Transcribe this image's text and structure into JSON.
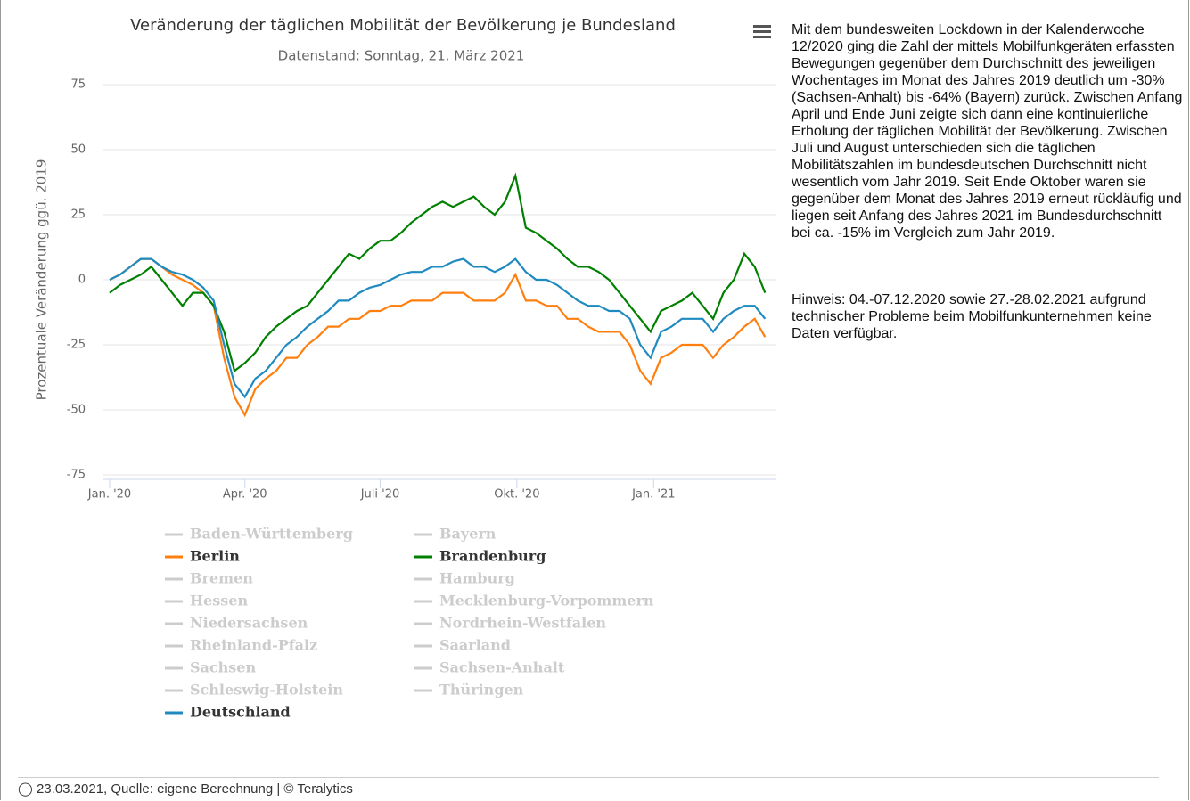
{
  "chart_data": {
    "type": "line",
    "title": "Veränderung der täglichen Mobilität der Bevölkerung je Bundesland",
    "subtitle": "Datenstand: Sonntag, 21. März 2021",
    "y_label": "Prozentuale Veränderung ggü. 2019",
    "ylim": [
      -75,
      75
    ],
    "yticks": [
      -75,
      -50,
      -25,
      0,
      25,
      50,
      75
    ],
    "grid": true,
    "xlim": [
      "2020-01-01",
      "2021-03-21"
    ],
    "xticks": [
      {
        "value": "2020-01-01",
        "label": "Jan. '20"
      },
      {
        "value": "2020-04-01",
        "label": "Apr. '20"
      },
      {
        "value": "2020-07-01",
        "label": "Juli '20"
      },
      {
        "value": "2020-10-01",
        "label": "Okt. '20"
      },
      {
        "value": "2021-01-01",
        "label": "Jan. '21"
      }
    ],
    "x": [
      "2020-01-01",
      "2020-01-08",
      "2020-01-15",
      "2020-01-22",
      "2020-01-29",
      "2020-02-05",
      "2020-02-12",
      "2020-02-19",
      "2020-02-26",
      "2020-03-04",
      "2020-03-11",
      "2020-03-18",
      "2020-03-25",
      "2020-04-01",
      "2020-04-08",
      "2020-04-15",
      "2020-04-22",
      "2020-04-29",
      "2020-05-06",
      "2020-05-13",
      "2020-05-20",
      "2020-05-27",
      "2020-06-03",
      "2020-06-10",
      "2020-06-17",
      "2020-06-24",
      "2020-07-01",
      "2020-07-08",
      "2020-07-15",
      "2020-07-22",
      "2020-07-29",
      "2020-08-05",
      "2020-08-12",
      "2020-08-19",
      "2020-08-26",
      "2020-09-02",
      "2020-09-09",
      "2020-09-16",
      "2020-09-23",
      "2020-09-30",
      "2020-10-07",
      "2020-10-14",
      "2020-10-21",
      "2020-10-28",
      "2020-11-04",
      "2020-11-11",
      "2020-11-18",
      "2020-11-25",
      "2020-12-02",
      "2020-12-09",
      "2020-12-16",
      "2020-12-23",
      "2020-12-30",
      "2021-01-06",
      "2021-01-13",
      "2021-01-20",
      "2021-01-27",
      "2021-02-03",
      "2021-02-10",
      "2021-02-17",
      "2021-02-24",
      "2021-03-03",
      "2021-03-10",
      "2021-03-17"
    ],
    "series": [
      {
        "name": "Baden-Württemberg",
        "color": "#cccccc",
        "visible": false
      },
      {
        "name": "Bayern",
        "color": "#cccccc",
        "visible": false
      },
      {
        "name": "Berlin",
        "color": "#ff7f0e",
        "visible": true,
        "values": [
          0,
          2,
          5,
          8,
          8,
          5,
          2,
          0,
          -2,
          -5,
          -10,
          -30,
          -45,
          -52,
          -42,
          -38,
          -35,
          -30,
          -30,
          -25,
          -22,
          -18,
          -18,
          -15,
          -15,
          -12,
          -12,
          -10,
          -10,
          -8,
          -8,
          -8,
          -5,
          -5,
          -5,
          -8,
          -8,
          -8,
          -5,
          2,
          -8,
          -8,
          -10,
          -10,
          -15,
          -15,
          -18,
          -20,
          -20,
          -20,
          -25,
          -35,
          -40,
          -30,
          -28,
          -25,
          -25,
          -25,
          -30,
          -25,
          -22,
          -18,
          -15,
          -22
        ]
      },
      {
        "name": "Brandenburg",
        "color": "#008000",
        "visible": true,
        "values": [
          -5,
          -2,
          0,
          2,
          5,
          0,
          -5,
          -10,
          -5,
          -5,
          -10,
          -20,
          -35,
          -32,
          -28,
          -22,
          -18,
          -15,
          -12,
          -10,
          -5,
          0,
          5,
          10,
          8,
          12,
          15,
          15,
          18,
          22,
          25,
          28,
          30,
          28,
          30,
          32,
          28,
          25,
          30,
          40,
          20,
          18,
          15,
          12,
          8,
          5,
          5,
          3,
          0,
          -5,
          -10,
          -15,
          -20,
          -12,
          -10,
          -8,
          -5,
          -10,
          -15,
          -5,
          0,
          10,
          5,
          -5
        ]
      },
      {
        "name": "Bremen",
        "color": "#cccccc",
        "visible": false
      },
      {
        "name": "Hamburg",
        "color": "#cccccc",
        "visible": false
      },
      {
        "name": "Hessen",
        "color": "#cccccc",
        "visible": false
      },
      {
        "name": "Mecklenburg-Vorpommern",
        "color": "#cccccc",
        "visible": false
      },
      {
        "name": "Niedersachsen",
        "color": "#cccccc",
        "visible": false
      },
      {
        "name": "Nordrhein-Westfalen",
        "color": "#cccccc",
        "visible": false
      },
      {
        "name": "Rheinland-Pfalz",
        "color": "#cccccc",
        "visible": false
      },
      {
        "name": "Saarland",
        "color": "#cccccc",
        "visible": false
      },
      {
        "name": "Sachsen",
        "color": "#cccccc",
        "visible": false
      },
      {
        "name": "Sachsen-Anhalt",
        "color": "#cccccc",
        "visible": false
      },
      {
        "name": "Schleswig-Holstein",
        "color": "#cccccc",
        "visible": false
      },
      {
        "name": "Thüringen",
        "color": "#cccccc",
        "visible": false
      },
      {
        "name": "Deutschland",
        "color": "#1f8ac0",
        "visible": true,
        "values": [
          0,
          2,
          5,
          8,
          8,
          5,
          3,
          2,
          0,
          -3,
          -8,
          -25,
          -40,
          -45,
          -38,
          -35,
          -30,
          -25,
          -22,
          -18,
          -15,
          -12,
          -8,
          -8,
          -5,
          -3,
          -2,
          0,
          2,
          3,
          3,
          5,
          5,
          7,
          8,
          5,
          5,
          3,
          5,
          8,
          3,
          0,
          0,
          -2,
          -5,
          -8,
          -10,
          -10,
          -12,
          -12,
          -15,
          -25,
          -30,
          -20,
          -18,
          -15,
          -15,
          -15,
          -20,
          -15,
          -12,
          -10,
          -10,
          -15
        ]
      }
    ]
  },
  "side_text": [
    "Mit dem bundesweiten Lockdown in der Kalenderwoche 12/2020 ging die Zahl der mittels Mobilfunkgeräten erfassten Bewegungen gegenüber dem Durchschnitt des jeweiligen Wochentages im Monat des Jahres 2019 deutlich um -30% (Sachsen-Anhalt) bis -64% (Bayern) zurück. Zwischen Anfang April und Ende Juni zeigte sich dann eine kontinuierliche Erholung der täglichen Mobilität der Bevölkerung. Zwischen Juli und August unterschieden sich die täglichen Mobilitätszahlen im bundesdeutschen Durchschnitt nicht wesentlich vom Jahr 2019. Seit Ende Oktober waren sie gegenüber dem Monat des Jahres 2019 erneut rückläufig und liegen seit Anfang des Jahres 2021 im Bundesdurchschnitt bei ca. -15% im Vergleich zum Jahr 2019.",
    "Hinweis: 04.-07.12.2020 sowie 27.-28.02.2021 aufgrund technischer Probleme beim Mobilfunkunternehmen keine Daten verfügbar."
  ],
  "footer": "23.03.2021, Quelle: eigene Berechnung | © Teralytics"
}
